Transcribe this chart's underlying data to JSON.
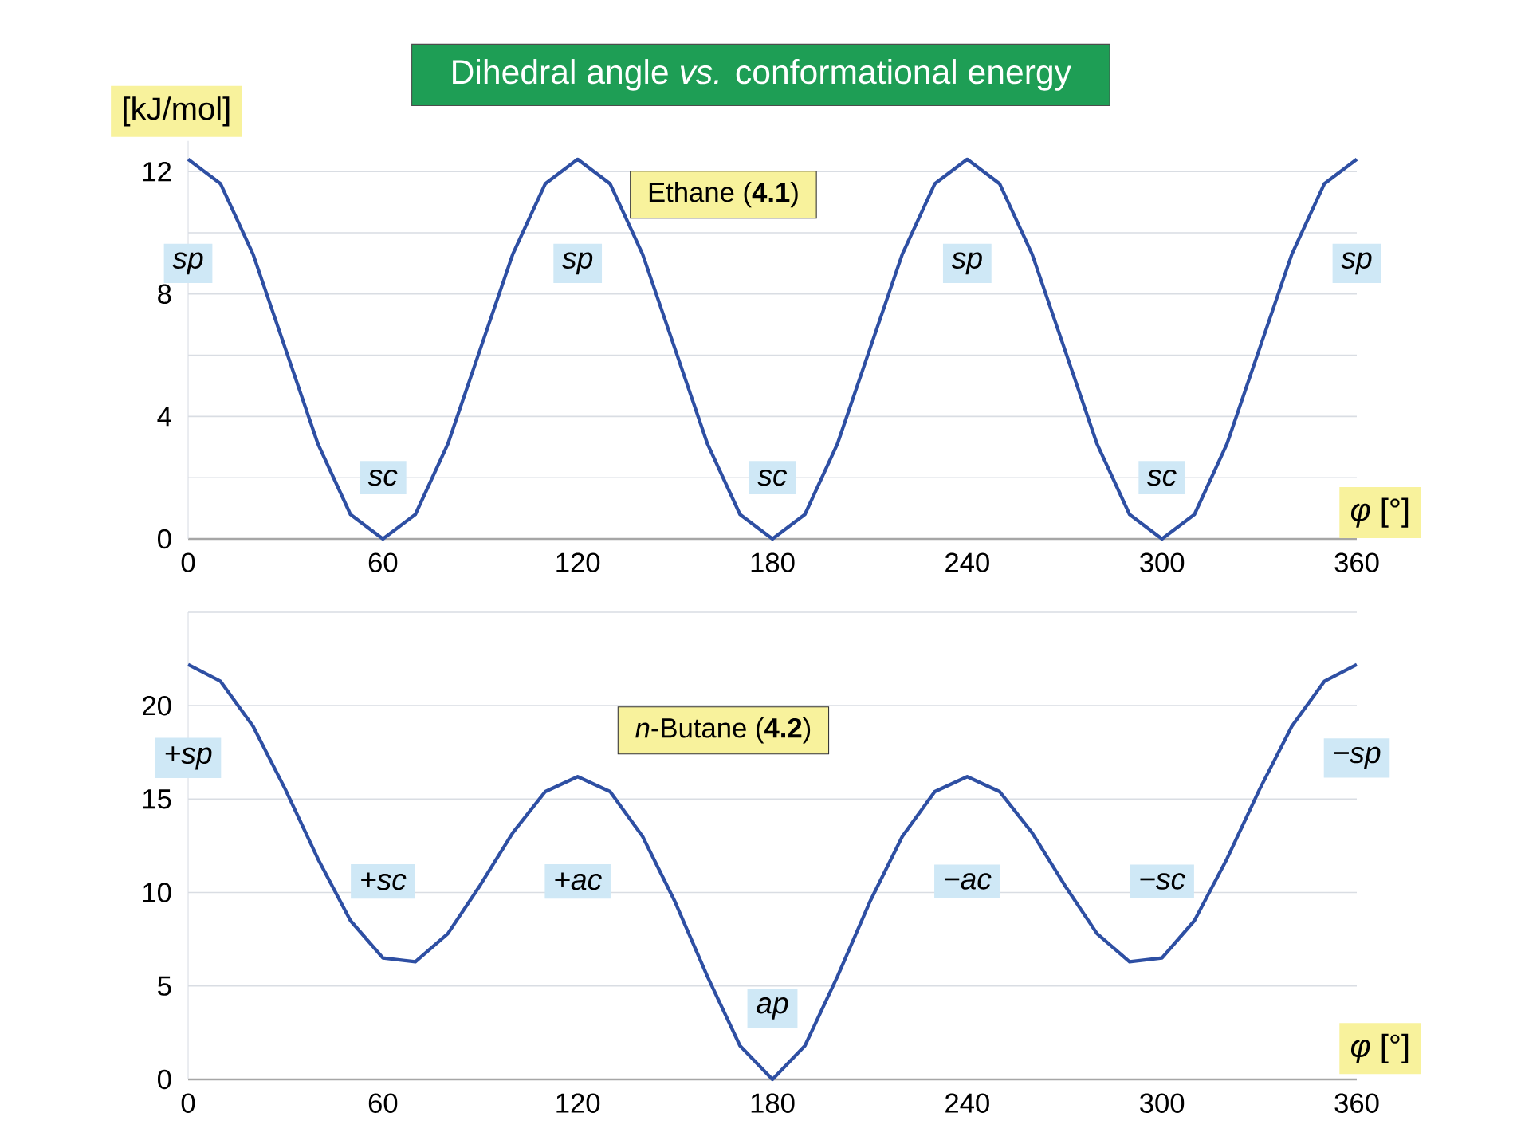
{
  "chart_data": [
    {
      "type": "line",
      "title": "Dihedral angle *vs.* conformational energy",
      "subtitle": "Ethane (**4.1**)",
      "ylabel": "[kJ/mol]",
      "xlabel": "*φ* [°]",
      "x": [
        0,
        10,
        20,
        30,
        40,
        50,
        60,
        70,
        80,
        90,
        100,
        110,
        120,
        130,
        140,
        150,
        160,
        170,
        180,
        190,
        200,
        210,
        220,
        230,
        240,
        250,
        260,
        270,
        280,
        290,
        300,
        310,
        320,
        330,
        340,
        350,
        360
      ],
      "values": [
        12.4,
        11.6,
        9.3,
        6.2,
        3.1,
        0.8,
        0,
        0.8,
        3.1,
        6.2,
        9.3,
        11.6,
        12.4,
        11.6,
        9.3,
        6.2,
        3.1,
        0.8,
        0,
        0.8,
        3.1,
        6.2,
        9.3,
        11.6,
        12.4,
        11.6,
        9.3,
        6.2,
        3.1,
        0.8,
        0,
        0.8,
        3.1,
        6.2,
        9.3,
        11.6,
        12.4
      ],
      "color": "#2e4fa3",
      "xlim": [
        0,
        360
      ],
      "xticks": [
        0,
        60,
        120,
        180,
        240,
        300,
        360
      ],
      "ylim": [
        0,
        13
      ],
      "yticks": [
        0,
        {
          "value": 2,
          "label": null
        },
        4,
        {
          "value": 6,
          "label": null
        },
        8,
        {
          "value": 10,
          "label": null
        },
        12
      ],
      "grid": "y",
      "annotations": [
        {
          "text": "sp",
          "x": 0,
          "y": 9
        },
        {
          "text": "sc",
          "x": 60,
          "y": 2
        },
        {
          "text": "sp",
          "x": 120,
          "y": 9
        },
        {
          "text": "sc",
          "x": 180,
          "y": 2
        },
        {
          "text": "sp",
          "x": 240,
          "y": 9
        },
        {
          "text": "sc",
          "x": 300,
          "y": 2
        },
        {
          "text": "sp",
          "x": 360,
          "y": 9
        }
      ]
    },
    {
      "type": "line",
      "subtitle": "*n*-Butane (**4.2**)",
      "xlabel": "*φ* [°]",
      "x": [
        0,
        10,
        20,
        30,
        40,
        50,
        60,
        70,
        80,
        90,
        100,
        110,
        120,
        130,
        140,
        150,
        160,
        170,
        180,
        190,
        200,
        210,
        220,
        230,
        240,
        250,
        260,
        270,
        280,
        290,
        300,
        310,
        320,
        330,
        340,
        350,
        360
      ],
      "values": [
        22.2,
        21.3,
        18.9,
        15.5,
        11.8,
        8.5,
        6.5,
        6.3,
        7.8,
        10.4,
        13.2,
        15.4,
        16.2,
        15.4,
        13.0,
        9.5,
        5.5,
        1.8,
        0,
        1.8,
        5.5,
        9.5,
        13.0,
        15.4,
        16.2,
        15.4,
        13.2,
        10.4,
        7.8,
        6.3,
        6.5,
        8.5,
        11.8,
        15.5,
        18.9,
        21.3,
        22.2
      ],
      "color": "#2e4fa3",
      "xlim": [
        0,
        360
      ],
      "xticks": [
        0,
        60,
        120,
        180,
        240,
        300,
        360
      ],
      "ylim": [
        0,
        25
      ],
      "yticks": [
        0,
        5,
        10,
        15,
        20,
        {
          "value": 25,
          "label": null
        }
      ],
      "grid": "y",
      "annotations": [
        {
          "text": "+sp",
          "x": 0,
          "y": 17.2
        },
        {
          "text": "+sc",
          "x": 60,
          "y": 10.6
        },
        {
          "text": "+ac",
          "x": 120,
          "y": 10.6
        },
        {
          "text": "ap",
          "x": 180,
          "y": 3.8
        },
        {
          "text": "−ac",
          "x": 240,
          "y": 10.6
        },
        {
          "text": "−sc",
          "x": 300,
          "y": 10.6
        },
        {
          "text": "−sp",
          "x": 360,
          "y": 17.2
        }
      ]
    }
  ]
}
